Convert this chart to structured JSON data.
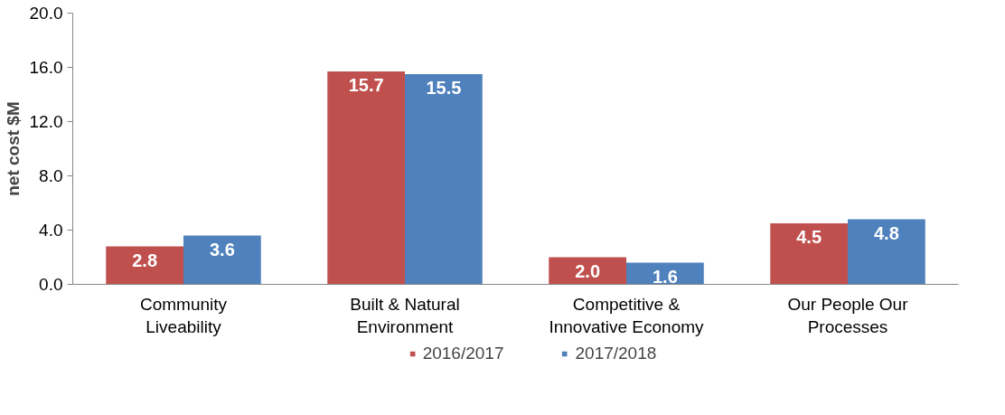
{
  "chart_data": {
    "type": "bar",
    "ylabel": "net cost $M",
    "categories": [
      "Community\nLiveability",
      "Built & Natural\nEnvironment",
      "Competitive &\nInnovative Economy",
      "Our People Our\nProcesses"
    ],
    "series": [
      {
        "name": "2016/2017",
        "color": "#c0504d",
        "values": [
          2.8,
          15.7,
          2.0,
          4.5
        ],
        "value_labels": [
          "2.8",
          "15.7",
          "2.0",
          "4.5"
        ]
      },
      {
        "name": "2017/2018",
        "color": "#4f81bd",
        "values": [
          3.6,
          15.5,
          1.6,
          4.8
        ],
        "value_labels": [
          "3.6",
          "15.5",
          "1.6",
          "4.8"
        ]
      }
    ],
    "ylim": [
      0,
      20
    ],
    "yticks": [
      {
        "value": 0,
        "label": "0.0"
      },
      {
        "value": 4,
        "label": "4.0"
      },
      {
        "value": 8,
        "label": "8.0"
      },
      {
        "value": 12,
        "label": "12.0"
      },
      {
        "value": 16,
        "label": "16.0"
      },
      {
        "value": 20,
        "label": "20.0"
      }
    ],
    "grid": false,
    "legend": "bottom"
  }
}
